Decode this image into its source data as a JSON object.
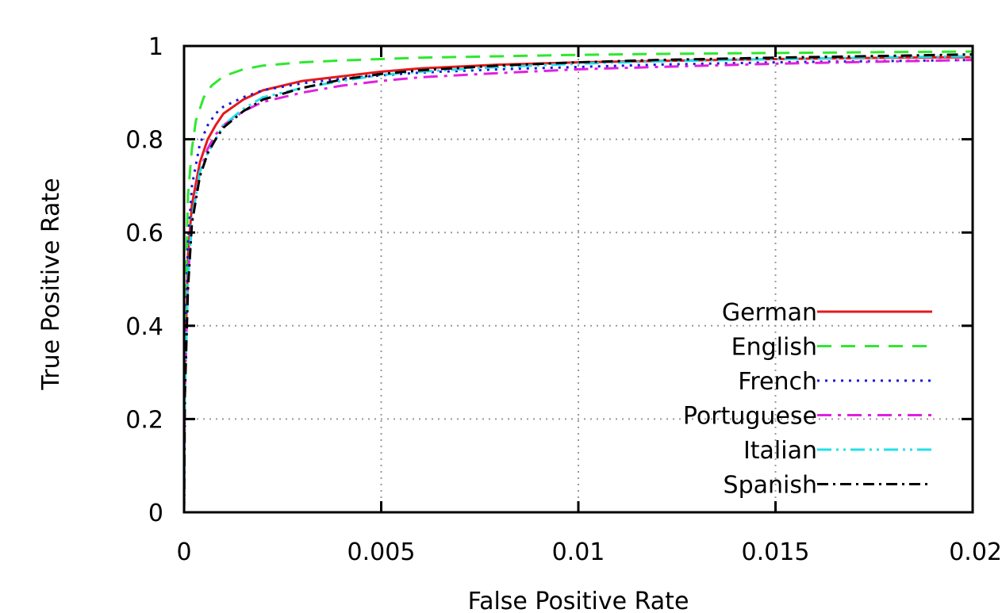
{
  "chart_data": {
    "type": "line",
    "title": "",
    "xlabel": "False Positive Rate",
    "ylabel": "True Positive Rate",
    "xlim": [
      0,
      0.02
    ],
    "ylim": [
      0,
      1
    ],
    "xticks": [
      0,
      0.005,
      0.01,
      0.015,
      0.02
    ],
    "xtick_labels": [
      "0",
      "0.005",
      "0.01",
      "0.015",
      "0.02"
    ],
    "yticks": [
      0,
      0.2,
      0.4,
      0.6,
      0.8,
      1
    ],
    "ytick_labels": [
      "0",
      "0.2",
      "0.4",
      "0.6",
      "0.8",
      "1"
    ],
    "grid": true,
    "legend_position": "bottom-right",
    "series": [
      {
        "name": "German",
        "color": "#e41a1c",
        "dash": "solid",
        "x": [
          0,
          2e-05,
          0.0001,
          0.0002,
          0.0004,
          0.0006,
          0.0008,
          0.001,
          0.0015,
          0.002,
          0.003,
          0.004,
          0.005,
          0.006,
          0.008,
          0.01,
          0.012,
          0.015,
          0.018,
          0.02
        ],
        "y": [
          0,
          0.3,
          0.55,
          0.66,
          0.75,
          0.8,
          0.83,
          0.855,
          0.885,
          0.905,
          0.925,
          0.935,
          0.945,
          0.952,
          0.96,
          0.965,
          0.968,
          0.972,
          0.975,
          0.976
        ]
      },
      {
        "name": "English",
        "color": "#2ee82e",
        "dash": "dashed",
        "x": [
          0,
          2e-05,
          0.0001,
          0.0002,
          0.0003,
          0.0005,
          0.0007,
          0.001,
          0.0015,
          0.002,
          0.003,
          0.004,
          0.005,
          0.006,
          0.008,
          0.01,
          0.012,
          0.015,
          0.018,
          0.02
        ],
        "y": [
          0,
          0.4,
          0.68,
          0.78,
          0.84,
          0.89,
          0.915,
          0.935,
          0.95,
          0.958,
          0.965,
          0.969,
          0.972,
          0.975,
          0.978,
          0.981,
          0.983,
          0.985,
          0.987,
          0.988
        ]
      },
      {
        "name": "French",
        "color": "#1a1ad6",
        "dash": "dotted",
        "x": [
          0,
          2e-05,
          0.0001,
          0.0002,
          0.0004,
          0.0006,
          0.0008,
          0.001,
          0.0015,
          0.002,
          0.003,
          0.004,
          0.005,
          0.006,
          0.008,
          0.01,
          0.012,
          0.015,
          0.018,
          0.02
        ],
        "y": [
          0,
          0.3,
          0.58,
          0.7,
          0.79,
          0.83,
          0.855,
          0.87,
          0.89,
          0.905,
          0.92,
          0.93,
          0.937,
          0.943,
          0.95,
          0.955,
          0.96,
          0.965,
          0.968,
          0.97
        ]
      },
      {
        "name": "Portuguese",
        "color": "#e020e0",
        "dash": "dashdot",
        "x": [
          0,
          2e-05,
          0.0001,
          0.0002,
          0.0004,
          0.0006,
          0.0008,
          0.001,
          0.0015,
          0.002,
          0.003,
          0.004,
          0.005,
          0.006,
          0.008,
          0.01,
          0.012,
          0.015,
          0.018,
          0.02
        ],
        "y": [
          0,
          0.25,
          0.5,
          0.63,
          0.73,
          0.78,
          0.81,
          0.83,
          0.86,
          0.88,
          0.9,
          0.915,
          0.925,
          0.933,
          0.942,
          0.95,
          0.955,
          0.962,
          0.967,
          0.97
        ]
      },
      {
        "name": "Italian",
        "color": "#22e0e8",
        "dash": "dashdotdot",
        "x": [
          0,
          2e-05,
          0.0001,
          0.0002,
          0.0004,
          0.0006,
          0.0008,
          0.001,
          0.0015,
          0.002,
          0.003,
          0.004,
          0.005,
          0.006,
          0.008,
          0.01,
          0.012,
          0.015,
          0.018,
          0.02
        ],
        "y": [
          0,
          0.25,
          0.5,
          0.63,
          0.73,
          0.77,
          0.8,
          0.83,
          0.865,
          0.89,
          0.91,
          0.925,
          0.938,
          0.945,
          0.955,
          0.962,
          0.967,
          0.972,
          0.976,
          0.978
        ]
      },
      {
        "name": "Spanish",
        "color": "#000000",
        "dash": "dashdotlong",
        "x": [
          0,
          2e-05,
          0.0001,
          0.0002,
          0.0004,
          0.0006,
          0.0008,
          0.001,
          0.0015,
          0.002,
          0.003,
          0.004,
          0.005,
          0.006,
          0.008,
          0.01,
          0.012,
          0.015,
          0.018,
          0.02
        ],
        "y": [
          0,
          0.25,
          0.48,
          0.62,
          0.72,
          0.77,
          0.8,
          0.825,
          0.86,
          0.885,
          0.91,
          0.928,
          0.94,
          0.948,
          0.958,
          0.965,
          0.97,
          0.975,
          0.979,
          0.982
        ]
      }
    ]
  }
}
